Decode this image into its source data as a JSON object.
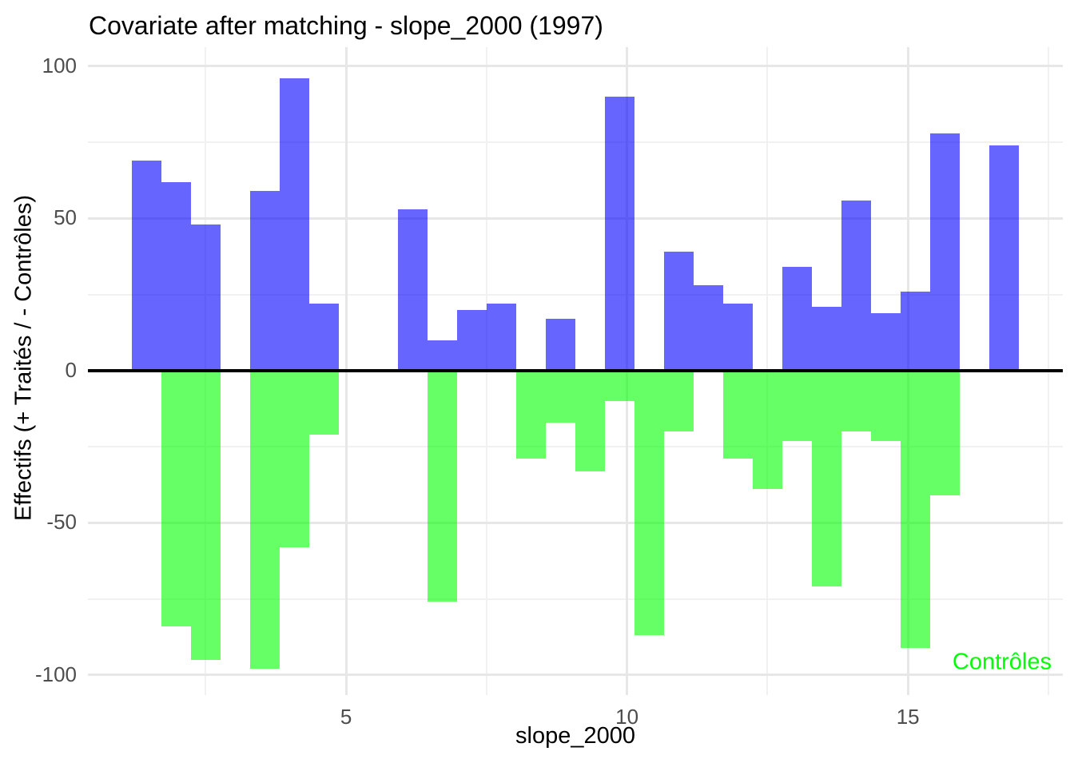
{
  "title": "Covariate after matching - slope_2000 (1997)",
  "annotation": {
    "text": "Contrôles",
    "color": "#00FF00"
  },
  "colors": {
    "treated_fill": "rgba(0,0,255,0.6)",
    "control_fill": "rgba(0,255,0,0.6)",
    "treated_flat_hex": "#6666FF",
    "control_flat_hex": "#66FF66",
    "tick_label": "#4D4D4D",
    "grid_major": "#E7E7E7",
    "grid_minor": "#F1F1F1",
    "zero_line": "#000000",
    "background": "#FFFFFF"
  },
  "x_axis": {
    "title": "slope_2000",
    "tick_values": [
      5,
      10,
      15
    ],
    "tick_labels": [
      "5",
      "10",
      "15"
    ],
    "minor_tick_values": [
      2.5,
      7.5,
      12.5,
      17.5
    ]
  },
  "y_axis": {
    "title": "Effectifs (+ Traités / - Contrôles)",
    "tick_values": [
      100,
      50,
      0,
      -50,
      -100
    ],
    "tick_labels": [
      "100",
      "50",
      "0",
      "-50",
      "-100"
    ],
    "minor_tick_values": [
      75,
      25,
      -25,
      -75
    ]
  },
  "chart_data": {
    "type": "bar",
    "subtype": "back-to-back histogram (treated counts up, control counts down)",
    "title": "Covariate after matching - slope_2000 (1997)",
    "xlabel": "slope_2000",
    "ylabel": "Effectifs (+ Traités / - Contrôles)",
    "xlim": [
      0.405,
      17.757
    ],
    "ylim": [
      -106.6,
      106.3
    ],
    "grid": true,
    "legend_position": "none",
    "bin_start": 1.188,
    "bin_width": 0.5263,
    "series": [
      {
        "name": "Traités",
        "sign": "positive",
        "color_hex": "#6666FF",
        "values": [
          69,
          62,
          48,
          0,
          59,
          96,
          22,
          0,
          0,
          53,
          10,
          20,
          22,
          0,
          17,
          0,
          90,
          0,
          39,
          28,
          22,
          0,
          34,
          21,
          56,
          19,
          26,
          78,
          0,
          74
        ]
      },
      {
        "name": "Contrôles",
        "sign": "negative",
        "color_hex": "#66FF66",
        "values": [
          0,
          -84,
          -95,
          0,
          -98,
          -58,
          -21,
          0,
          0,
          0,
          -76,
          0,
          0,
          -29,
          -17,
          -33,
          -10,
          -87,
          -20,
          0,
          -29,
          -39,
          -23,
          -71,
          -20,
          -23,
          -91,
          -41,
          0,
          0
        ]
      }
    ]
  }
}
